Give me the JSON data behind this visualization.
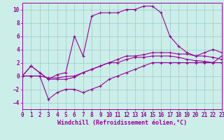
{
  "background_color": "#cceee8",
  "grid_color": "#99cccc",
  "line_color": "#990099",
  "xlim": [
    0,
    23
  ],
  "ylim": [
    -5,
    11
  ],
  "xticks": [
    0,
    1,
    2,
    3,
    4,
    5,
    6,
    7,
    8,
    9,
    10,
    11,
    12,
    13,
    14,
    15,
    16,
    17,
    18,
    19,
    20,
    21,
    22,
    23
  ],
  "yticks": [
    -4,
    -2,
    0,
    2,
    4,
    6,
    8,
    10
  ],
  "xlabel": "Windchill (Refroidissement éolien,°C)",
  "xlabel_fontsize": 6,
  "tick_fontsize": 5.5,
  "lines": [
    {
      "x": [
        0,
        1,
        2,
        3,
        4,
        5,
        6,
        7,
        8,
        9,
        10,
        11,
        12,
        13,
        14,
        15,
        16,
        17,
        18,
        19,
        20,
        21,
        22,
        23
      ],
      "y": [
        0,
        1.5,
        0.5,
        -0.5,
        0.2,
        0.5,
        6,
        3,
        9,
        9.5,
        9.5,
        9.5,
        10,
        10,
        10.5,
        10.5,
        9.5,
        6,
        4.5,
        3.5,
        3.0,
        3.5,
        4.0,
        3.5
      ]
    },
    {
      "x": [
        0,
        1,
        2,
        3,
        4,
        5,
        6,
        7,
        8,
        9,
        10,
        11,
        12,
        13,
        14,
        15,
        16,
        17,
        18,
        19,
        20,
        21,
        22,
        23
      ],
      "y": [
        0,
        1.5,
        0.5,
        -0.5,
        -0.5,
        -0.5,
        -0.2,
        0.5,
        1.0,
        1.5,
        2.0,
        2.5,
        3.0,
        3.0,
        3.2,
        3.5,
        3.5,
        3.5,
        3.3,
        3.3,
        3.0,
        3.0,
        2.8,
        2.5
      ]
    },
    {
      "x": [
        0,
        1,
        2,
        3,
        4,
        5,
        6,
        7,
        8,
        9,
        10,
        11,
        12,
        13,
        14,
        15,
        16,
        17,
        18,
        19,
        20,
        21,
        22,
        23
      ],
      "y": [
        0,
        0,
        0,
        -0.3,
        -0.3,
        -0.1,
        0,
        0.5,
        1.0,
        1.5,
        2.0,
        2.0,
        2.5,
        2.8,
        2.8,
        3.0,
        3.0,
        3.0,
        2.8,
        2.5,
        2.3,
        2.2,
        2.0,
        2.0
      ]
    },
    {
      "x": [
        0,
        1,
        2,
        3,
        4,
        5,
        6,
        7,
        8,
        9,
        10,
        11,
        12,
        13,
        14,
        15,
        16,
        17,
        18,
        19,
        20,
        21,
        22,
        23
      ],
      "y": [
        0,
        0,
        0,
        -3.5,
        -2.5,
        -2.0,
        -2.0,
        -2.5,
        -2.0,
        -1.5,
        -0.5,
        0,
        0.5,
        1.0,
        1.5,
        2.0,
        2.0,
        2.0,
        2.0,
        2.0,
        2.0,
        2.0,
        2.0,
        3.0
      ]
    }
  ]
}
